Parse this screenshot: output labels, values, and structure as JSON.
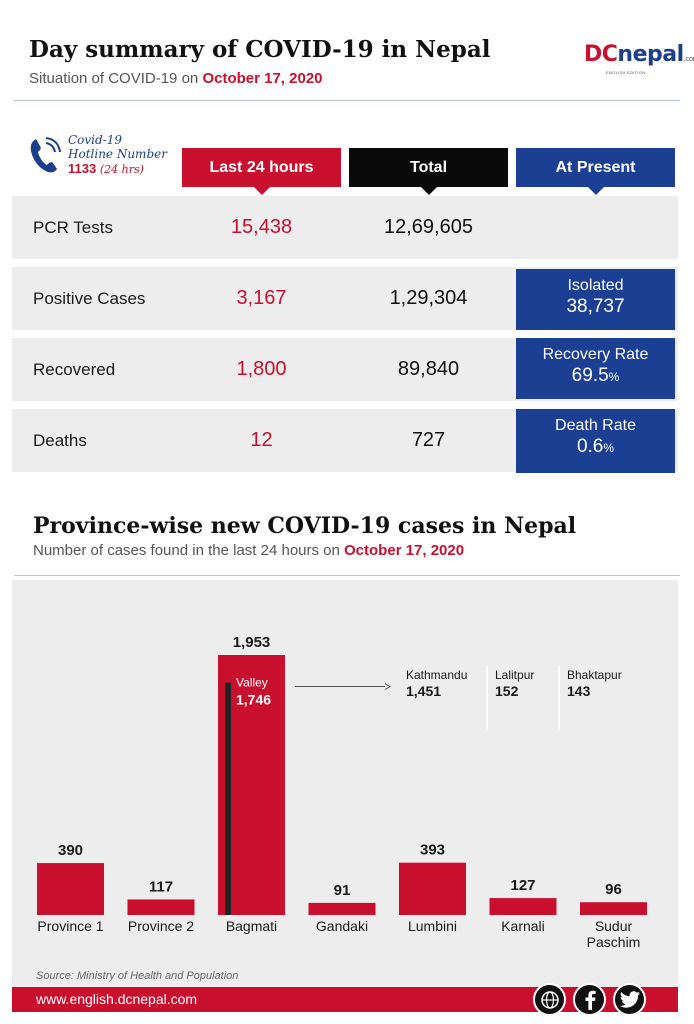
{
  "header": {
    "title": "Day summary of COVID-19 in Nepal",
    "subtitle_prefix": "Situation of COVID-19 on ",
    "date": "October 17, 2020",
    "logo_text_d": "DC",
    "logo_text_rest": "nepal",
    "logo_suffix": ".com",
    "logo_edition": "ENGLISH EDITION"
  },
  "hotline": {
    "line1": "Covid-19",
    "line2": "Hotline Number",
    "number": "1133",
    "hours": "(24 hrs)"
  },
  "columns": {
    "last24": "Last 24 hours",
    "total": "Total",
    "present": "At Present"
  },
  "rows": [
    {
      "label": "PCR Tests",
      "last24": "15,438",
      "total": "12,69,605",
      "present_label": "",
      "present_value": "",
      "present_unit": ""
    },
    {
      "label": "Positive Cases",
      "last24": "3,167",
      "total": "1,29,304",
      "present_label": "Isolated",
      "present_value": "38,737",
      "present_unit": ""
    },
    {
      "label": "Recovered",
      "last24": "1,800",
      "total": "89,840",
      "present_label": "Recovery Rate",
      "present_value": "69.5",
      "present_unit": "%"
    },
    {
      "label": "Deaths",
      "last24": "12",
      "total": "727",
      "present_label": "Death Rate",
      "present_value": "0.6",
      "present_unit": "%"
    }
  ],
  "province_section": {
    "title": "Province-wise new COVID-19 cases in Nepal",
    "subtitle_prefix": "Number of cases found in the last 24 hours on ",
    "date": "October 17, 2020"
  },
  "chart_data": {
    "type": "bar",
    "categories": [
      "Province 1",
      "Province 2",
      "Bagmati",
      "Gandaki",
      "Lumbini",
      "Karnali",
      "Sudur Paschim"
    ],
    "values": [
      390,
      117,
      1953,
      91,
      393,
      127,
      96
    ],
    "value_labels": [
      "390",
      "117",
      "1,953",
      "91",
      "393",
      "127",
      "96"
    ],
    "ylim": [
      0,
      1953
    ],
    "grid": false,
    "valley": {
      "label": "Valley",
      "value": 1746,
      "value_label": "1,746"
    },
    "valley_breakdown": [
      {
        "name": "Kathmandu",
        "value": 1451,
        "value_label": "1,451"
      },
      {
        "name": "Lalitpur",
        "value": 152,
        "value_label": "152"
      },
      {
        "name": "Bhaktapur",
        "value": 143,
        "value_label": "143"
      }
    ],
    "colors": {
      "bar": "#c8102e",
      "valley_line": "#222222"
    }
  },
  "footer": {
    "source": "Source: Ministry of Health and Population",
    "url": "www.english.dcnepal.com",
    "social": [
      "www-icon",
      "facebook-icon",
      "twitter-icon"
    ]
  },
  "colors": {
    "red": "#c8102e",
    "blue": "#1a3f93",
    "black": "#0a0a0a",
    "row_bg": "#ededed"
  }
}
